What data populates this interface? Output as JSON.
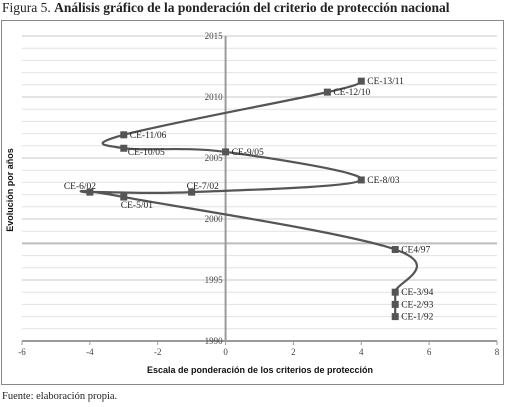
{
  "figure": {
    "number": "Figura 5.",
    "title": "Análisis gráfico de la ponderación del criterio de protección nacional",
    "source": "Fuente: elaboración propia."
  },
  "chart_data": {
    "type": "line",
    "title": "Análisis gráfico de la ponderación del criterio de protección nacional",
    "xlabel": "Escala de ponderación de los criterios de protección",
    "ylabel": "Evolución por años",
    "xlim": [
      -6,
      8
    ],
    "ylim": [
      1990,
      2015
    ],
    "x_ticks": [
      -6,
      -4,
      -2,
      0,
      2,
      4,
      6,
      8
    ],
    "y_ticks": [
      1990,
      1995,
      2000,
      2005,
      2010,
      2015
    ],
    "grid": true,
    "legend": "none",
    "line_color": "#555555",
    "marker_color": "#555555",
    "series": [
      {
        "points": [
          {
            "label": "CE-1/92",
            "x": 5,
            "y": 1992
          },
          {
            "label": "CE-2/93",
            "x": 5,
            "y": 1993
          },
          {
            "label": "CE-3/94",
            "x": 5,
            "y": 1994
          },
          {
            "label": "CE4/97",
            "x": 5,
            "y": 1997.5
          },
          {
            "label": "CE-5/01",
            "x": -3,
            "y": 2001.8
          },
          {
            "label": "CE-6/02",
            "x": -4,
            "y": 2002.2
          },
          {
            "label": "CE-7/02",
            "x": -1,
            "y": 2002.2
          },
          {
            "label": "CE-8/03",
            "x": 4,
            "y": 2003.2
          },
          {
            "label": "CE-9/05",
            "x": 0,
            "y": 2005.5
          },
          {
            "label": "CE-10/05",
            "x": -3,
            "y": 2005.8
          },
          {
            "label": "CE-11/06",
            "x": -3,
            "y": 2006.9
          },
          {
            "label": "CE-12/10",
            "x": 3,
            "y": 2010.4
          },
          {
            "label": "CE-13/11",
            "x": 4,
            "y": 2011.3
          }
        ]
      }
    ]
  }
}
